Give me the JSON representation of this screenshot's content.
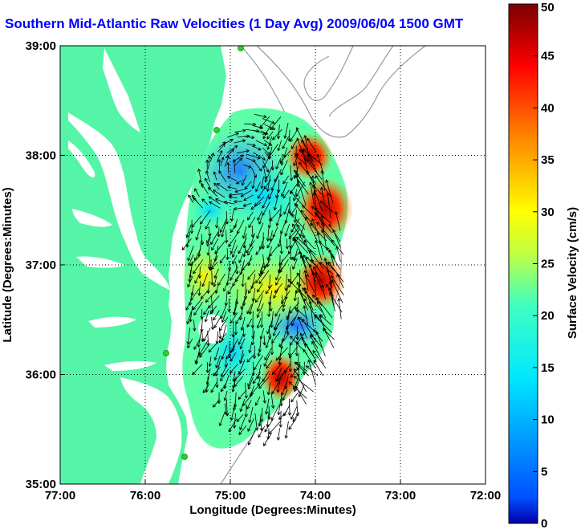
{
  "title": "Southern Mid-Atlantic Raw Velocities (1 Day Avg) 2009/06/04 1500 GMT",
  "title_color": "#0000ff",
  "land_color": "#55f5a8",
  "station_color": "#33cc33",
  "chart_data": {
    "type": "vector-field",
    "xlabel": "Longitude (Degrees:Minutes)",
    "ylabel": "Latitude (Degrees:Minutes)",
    "x_ticks": [
      "77:00",
      "76:00",
      "75:00",
      "74:00",
      "73:00",
      "72:00"
    ],
    "y_ticks": [
      "39:00",
      "38:00",
      "37:00",
      "36:00",
      "35:00"
    ],
    "xlim_deg_west": [
      77,
      72
    ],
    "ylim_deg_north": [
      35,
      39
    ],
    "grid": "dotted",
    "colorbar": {
      "label": "Surface Velocity (cm/s)",
      "range": [
        0,
        50
      ],
      "ticks": [
        "0",
        "5",
        "10",
        "15",
        "20",
        "25",
        "30",
        "35",
        "40",
        "45",
        "50"
      ],
      "colormap": "jet"
    }
  }
}
